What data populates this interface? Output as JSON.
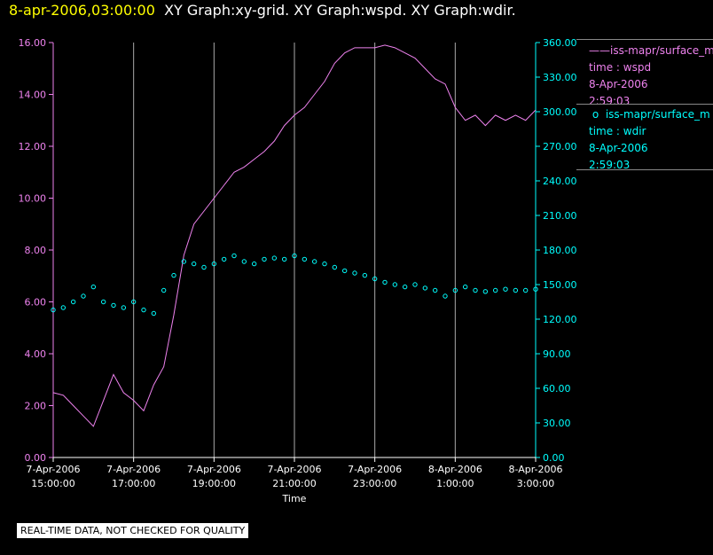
{
  "header": {
    "date": "8-apr-2006,03:00:00",
    "graphs": "XY Graph:xy-grid.  XY Graph:wspd.  XY Graph:wdir."
  },
  "legend": {
    "wspd": {
      "name": "iss-mapr/surface_m",
      "line1": "time : wspd",
      "line2": "8-Apr-2006",
      "line3": "2:59:03",
      "marker": "——"
    },
    "wdir": {
      "name": "iss-mapr/surface_m",
      "line1": "time : wdir",
      "line2": "8-Apr-2006",
      "line3": "2:59:03",
      "marker": "o"
    }
  },
  "disclaimer": "REAL-TIME DATA, NOT CHECKED FOR QUALITY",
  "colors": {
    "wspd": "#ee82ee",
    "wdir": "#00ffff",
    "grid": "#aaaaaa",
    "title_date": "#ffff00"
  },
  "chart_data": {
    "type": "line",
    "xlabel": "Time",
    "x_ticks": [
      {
        "t": 0,
        "line1": "7-Apr-2006",
        "line2": "15:00:00"
      },
      {
        "t": 2,
        "line1": "7-Apr-2006",
        "line2": "17:00:00"
      },
      {
        "t": 4,
        "line1": "7-Apr-2006",
        "line2": "19:00:00"
      },
      {
        "t": 6,
        "line1": "7-Apr-2006",
        "line2": "21:00:00"
      },
      {
        "t": 8,
        "line1": "7-Apr-2006",
        "line2": "23:00:00"
      },
      {
        "t": 10,
        "line1": "8-Apr-2006",
        "line2": "1:00:00"
      },
      {
        "t": 12,
        "line1": "8-Apr-2006",
        "line2": "3:00:00"
      }
    ],
    "xlim": [
      0,
      12
    ],
    "y_left": {
      "ylim": [
        0,
        16
      ],
      "ticks": [
        "0.00",
        "2.00",
        "4.00",
        "6.00",
        "8.00",
        "10.00",
        "12.00",
        "14.00",
        "16.00"
      ]
    },
    "y_right": {
      "ylim": [
        0,
        360
      ],
      "ticks": [
        "0.00",
        "30.00",
        "60.00",
        "90.00",
        "120.00",
        "150.00",
        "180.00",
        "210.00",
        "240.00",
        "270.00",
        "300.00",
        "330.00",
        "360.00"
      ]
    },
    "grid": "vertical",
    "series": [
      {
        "name": "wspd",
        "axis": "left",
        "style": "line",
        "x": [
          0,
          0.25,
          0.5,
          0.75,
          1,
          1.25,
          1.5,
          1.75,
          2,
          2.25,
          2.5,
          2.75,
          3,
          3.25,
          3.5,
          3.75,
          4,
          4.25,
          4.5,
          4.75,
          5,
          5.25,
          5.5,
          5.75,
          6,
          6.25,
          6.5,
          6.75,
          7,
          7.25,
          7.5,
          7.75,
          8,
          8.25,
          8.5,
          8.75,
          9,
          9.25,
          9.5,
          9.75,
          10,
          10.25,
          10.5,
          10.75,
          11,
          11.25,
          11.5,
          11.75,
          12
        ],
        "values": [
          2.5,
          2.4,
          2.0,
          1.6,
          1.2,
          2.2,
          3.2,
          2.5,
          2.2,
          1.8,
          2.8,
          3.5,
          5.5,
          7.8,
          9.0,
          9.5,
          10.0,
          10.5,
          11.0,
          11.2,
          11.5,
          11.8,
          12.2,
          12.8,
          13.2,
          13.5,
          14.0,
          14.5,
          15.2,
          15.6,
          15.8,
          15.8,
          15.8,
          15.9,
          15.8,
          15.6,
          15.4,
          15.0,
          14.6,
          14.4,
          13.5,
          13.0,
          13.2,
          12.8,
          13.2,
          13.0,
          13.2,
          13.0,
          13.4
        ]
      },
      {
        "name": "wdir",
        "axis": "right",
        "style": "points",
        "x": [
          0,
          0.25,
          0.5,
          0.75,
          1,
          1.25,
          1.5,
          1.75,
          2,
          2.25,
          2.5,
          2.75,
          3,
          3.25,
          3.5,
          3.75,
          4,
          4.25,
          4.5,
          4.75,
          5,
          5.25,
          5.5,
          5.75,
          6,
          6.25,
          6.5,
          6.75,
          7,
          7.25,
          7.5,
          7.75,
          8,
          8.25,
          8.5,
          8.75,
          9,
          9.25,
          9.5,
          9.75,
          10,
          10.25,
          10.5,
          10.75,
          11,
          11.25,
          11.5,
          11.75,
          12
        ],
        "values": [
          128,
          130,
          135,
          140,
          148,
          135,
          132,
          130,
          135,
          128,
          125,
          145,
          158,
          170,
          168,
          165,
          168,
          172,
          175,
          170,
          168,
          172,
          173,
          172,
          175,
          172,
          170,
          168,
          165,
          162,
          160,
          158,
          155,
          152,
          150,
          148,
          150,
          147,
          145,
          140,
          145,
          148,
          145,
          144,
          145,
          146,
          145,
          145,
          146
        ]
      }
    ]
  }
}
